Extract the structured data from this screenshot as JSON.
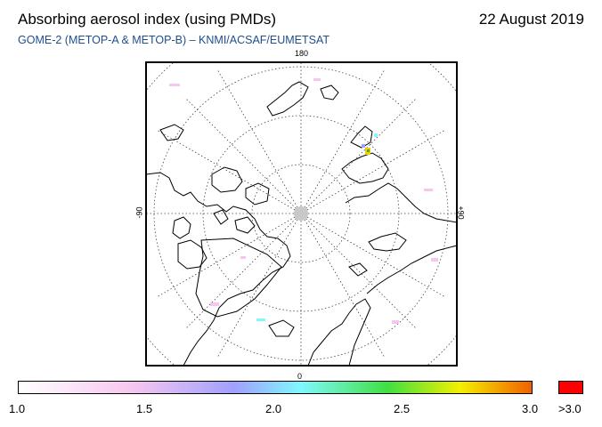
{
  "header": {
    "title": "Absorbing aerosol index (using PMDs)",
    "date": "22 August 2019",
    "subtitle": "GOME-2 (METOP-A & METOP-B)  –  KNMI/ACSAF/EUMETSAT"
  },
  "map": {
    "label_top": "180",
    "label_bottom": "0",
    "label_left": "-90",
    "label_right": "+90",
    "projection": "polar stereographic (north pole)"
  },
  "colorbar": {
    "ticks": [
      "1.0",
      "1.5",
      "2.0",
      "2.5",
      "3.0"
    ],
    "overflow_label": ">3.0",
    "colors": {
      "start": "#ffffff",
      "pink": "#f7c6f0",
      "lavender": "#a0a0ff",
      "cyan": "#80f8ff",
      "green": "#40e040",
      "yellow": "#f4f000",
      "orange": "#f06000",
      "overflow": "#ff0000"
    }
  }
}
